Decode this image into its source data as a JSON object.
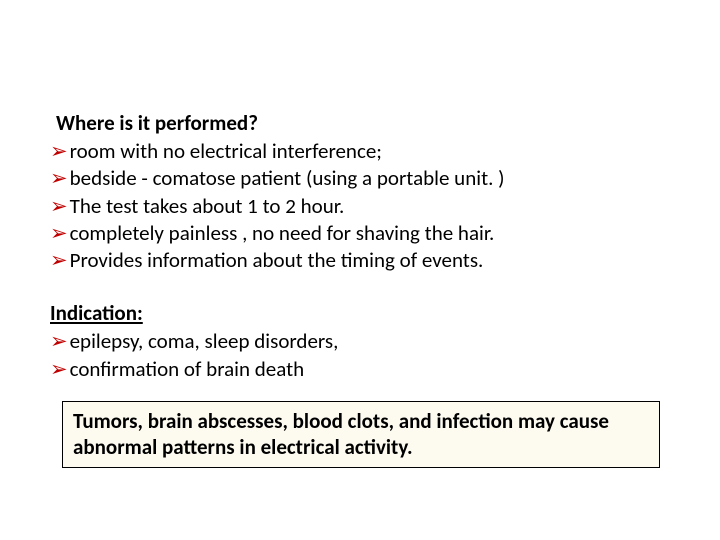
{
  "section1": {
    "heading": "Where is it performed?",
    "items": [
      "room with no electrical interference;",
      "bedside - comatose  patient (using a portable unit. )",
      "The test takes about 1 to 2 hour.",
      "completely painless , no need for  shaving the  hair.",
      "Provides information about the timing of events."
    ]
  },
  "section2": {
    "heading": "Indication: ",
    "items": [
      "epilepsy, coma, sleep disorders,",
      "confirmation of brain death"
    ]
  },
  "box": {
    "text": "Tumors, brain abscesses, blood clots, and infection may cause abnormal patterns in electrical activity."
  },
  "colors": {
    "bullet": "#c00000",
    "box_bg": "#fdfbf0",
    "box_border": "#000000",
    "text": "#000000"
  }
}
